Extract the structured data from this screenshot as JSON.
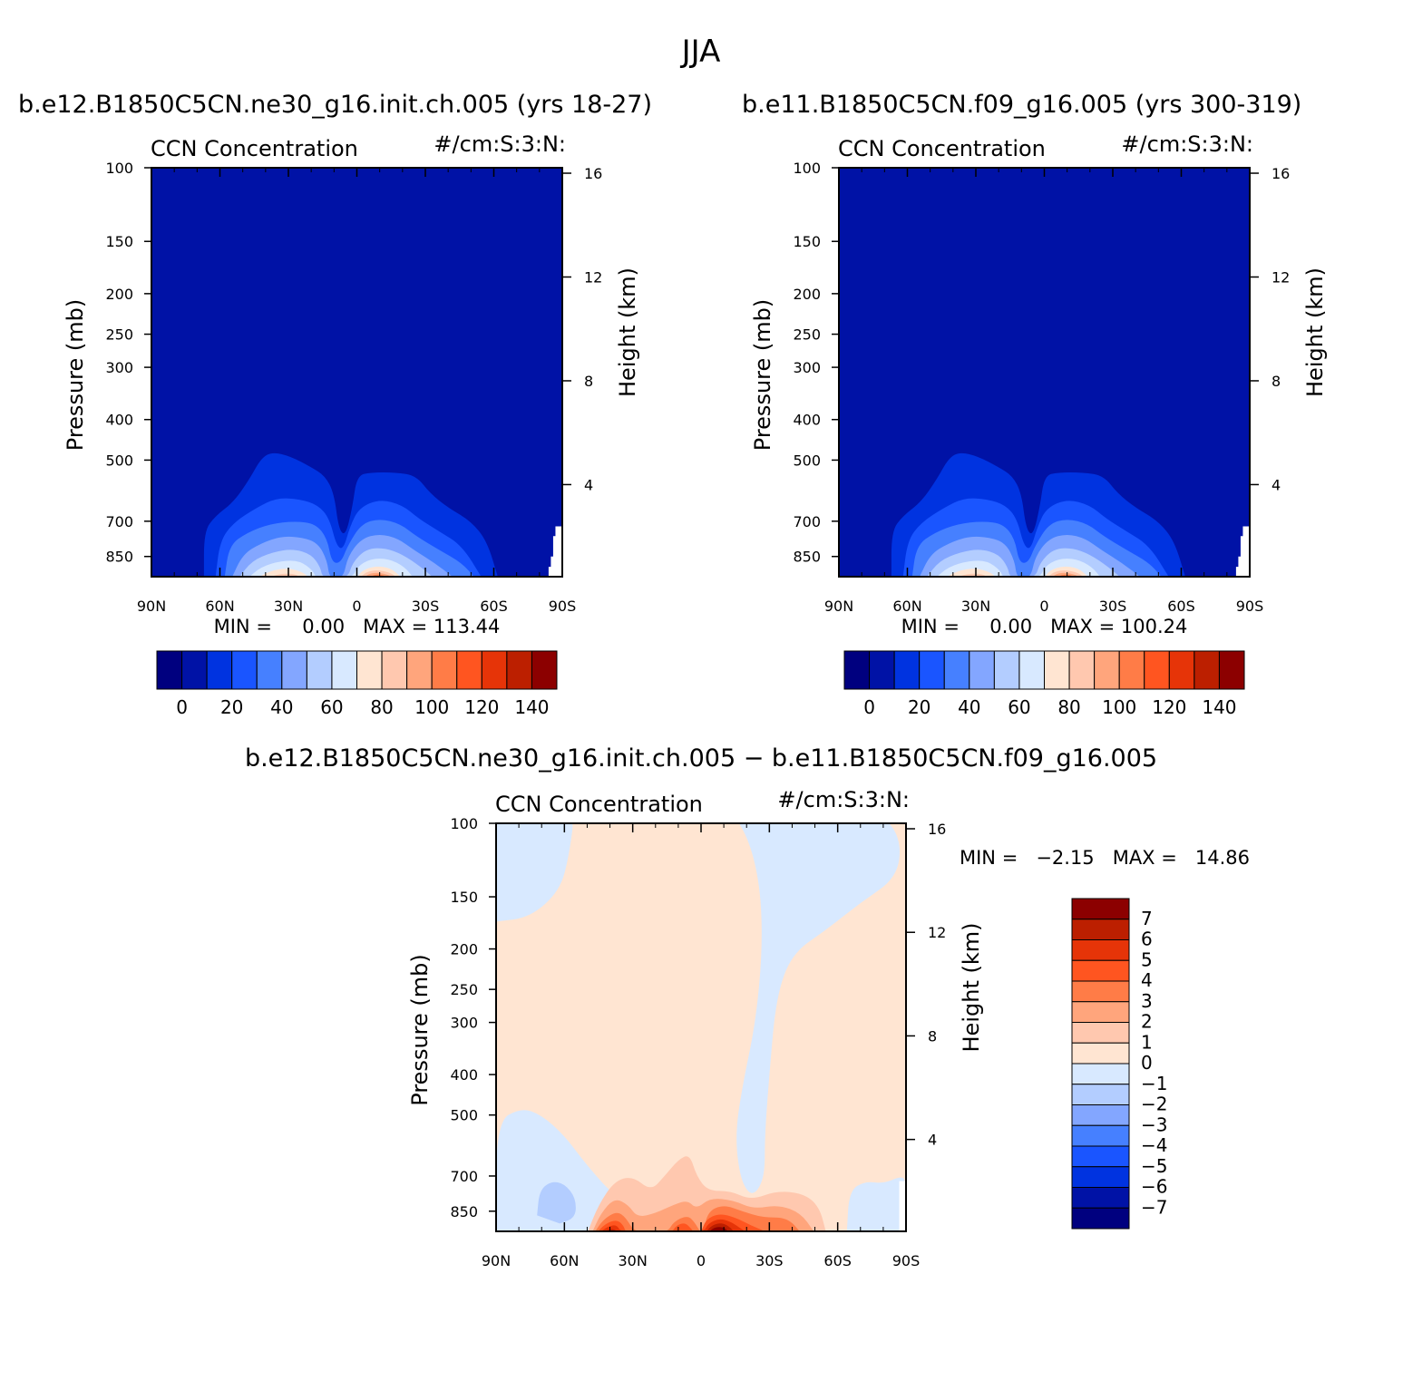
{
  "figure": {
    "title": "JJA"
  },
  "colors": {
    "frame": "#000000",
    "background": "#ffffff",
    "abs_scale": [
      "#00007f",
      "#0012a6",
      "#0033e0",
      "#1a55ff",
      "#4680ff",
      "#83a6ff",
      "#b3cdff",
      "#d8e9ff",
      "#ffe5d2",
      "#ffc8af",
      "#ffa57c",
      "#ff7c47",
      "#ff5520",
      "#e63408",
      "#bc1f00",
      "#8c0000"
    ],
    "diff_scale": [
      "#00007f",
      "#0012a6",
      "#0033e0",
      "#1a55ff",
      "#4680ff",
      "#83a6ff",
      "#b3cdff",
      "#d8e9ff",
      "#ffe5d2",
      "#ffc8af",
      "#ffa57c",
      "#ff7c47",
      "#ff5520",
      "#e63408",
      "#bc1f00",
      "#8c0000"
    ]
  },
  "chart_data": [
    {
      "type": "heatmap",
      "id": "left",
      "case_title": "b.e12.B1850C5CN.ne30_g16.init.ch.005 (yrs 18-27)",
      "field_label": "CCN Concentration",
      "units": "#/cm:S:3:N:",
      "xlabel": "",
      "ylabel": "Pressure (mb)",
      "y2label": "Height (km)",
      "x_ticks": [
        "90N",
        "60N",
        "30N",
        "0",
        "30S",
        "60S",
        "90S"
      ],
      "x_values": [
        -90,
        -60,
        -30,
        0,
        30,
        60,
        90
      ],
      "xlim": [
        -90,
        90
      ],
      "y_ticks": [
        100,
        150,
        200,
        250,
        300,
        400,
        500,
        700,
        850
      ],
      "ylim": [
        100,
        950
      ],
      "y2_ticks": [
        4,
        8,
        12,
        16
      ],
      "stats": "MIN =     0.00   MAX = 113.44",
      "min": 0.0,
      "max": 113.44,
      "colorbar_labels": [
        "0",
        "20",
        "40",
        "60",
        "80",
        "100",
        "120",
        "140"
      ],
      "colorbar_orientation": "horizontal",
      "peak_value": 113.44
    },
    {
      "type": "heatmap",
      "id": "right",
      "case_title": "b.e11.B1850C5CN.f09_g16.005 (yrs 300-319)",
      "field_label": "CCN Concentration",
      "units": "#/cm:S:3:N:",
      "xlabel": "",
      "ylabel": "Pressure (mb)",
      "y2label": "Height (km)",
      "x_ticks": [
        "90N",
        "60N",
        "30N",
        "0",
        "30S",
        "60S",
        "90S"
      ],
      "x_values": [
        -90,
        -60,
        -30,
        0,
        30,
        60,
        90
      ],
      "xlim": [
        -90,
        90
      ],
      "y_ticks": [
        100,
        150,
        200,
        250,
        300,
        400,
        500,
        700,
        850
      ],
      "ylim": [
        100,
        950
      ],
      "y2_ticks": [
        4,
        8,
        12,
        16
      ],
      "stats": "MIN =     0.00   MAX = 100.24",
      "min": 0.0,
      "max": 100.24,
      "colorbar_labels": [
        "0",
        "20",
        "40",
        "60",
        "80",
        "100",
        "120",
        "140"
      ],
      "colorbar_orientation": "horizontal",
      "peak_value": 100.24
    },
    {
      "type": "heatmap",
      "id": "diff",
      "case_title": "b.e12.B1850C5CN.ne30_g16.init.ch.005 − b.e11.B1850C5CN.f09_g16.005",
      "field_label": "CCN Concentration",
      "units": "#/cm:S:3:N:",
      "xlabel": "",
      "ylabel": "Pressure (mb)",
      "y2label": "Height (km)",
      "x_ticks": [
        "90N",
        "60N",
        "30N",
        "0",
        "30S",
        "60S",
        "90S"
      ],
      "x_values": [
        -90,
        -60,
        -30,
        0,
        30,
        60,
        90
      ],
      "xlim": [
        -90,
        90
      ],
      "y_ticks": [
        100,
        150,
        200,
        250,
        300,
        400,
        500,
        700,
        850
      ],
      "ylim": [
        100,
        950
      ],
      "y2_ticks": [
        4,
        8,
        12,
        16
      ],
      "stats": "MIN =   −2.15   MAX =   14.86",
      "min": -2.15,
      "max": 14.86,
      "colorbar_labels": [
        "7",
        "6",
        "5",
        "4",
        "3",
        "2",
        "1",
        "0",
        "−1",
        "−2",
        "−3",
        "−4",
        "−5",
        "−6",
        "−7"
      ],
      "colorbar_orientation": "vertical"
    }
  ]
}
